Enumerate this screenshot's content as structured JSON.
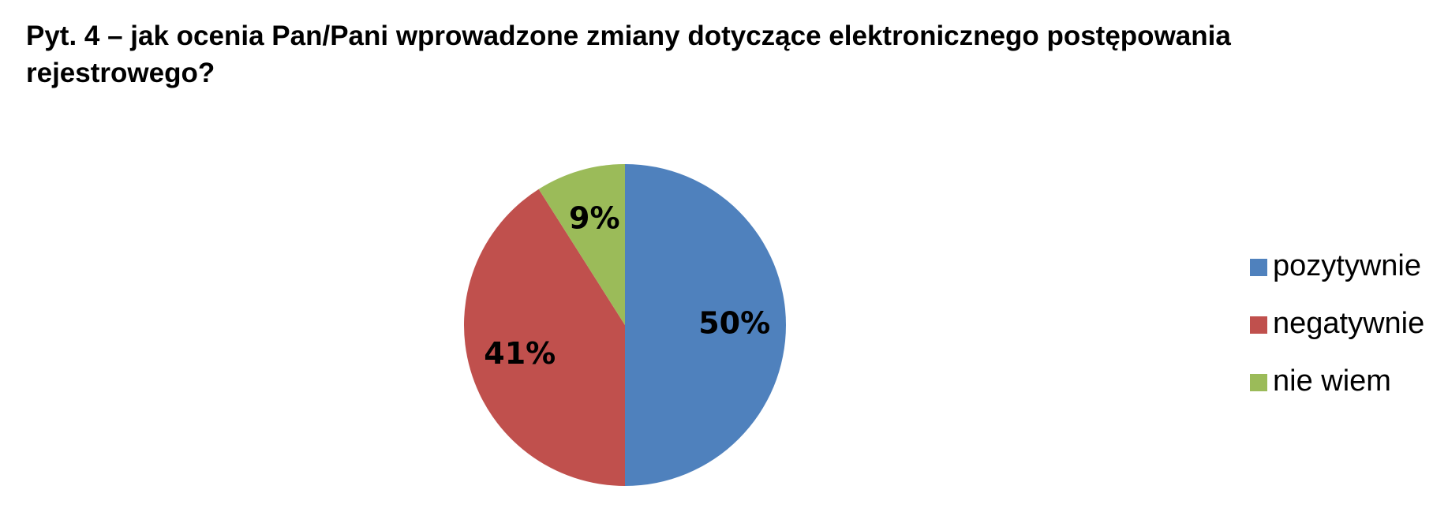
{
  "chart_data": {
    "type": "pie",
    "title": "Pyt. 4 – jak ocenia Pan/Pani wprowadzone zmiany dotyczące elektronicznego postępowania rejestrowego?",
    "categories": [
      "pozytywnie",
      "negatywnie",
      "nie wiem"
    ],
    "values": [
      50,
      41,
      9
    ],
    "value_labels": [
      "50%",
      "41%",
      "9%"
    ],
    "colors": [
      "#4f81bd",
      "#c0504d",
      "#9bbb59"
    ],
    "legend": "right"
  }
}
